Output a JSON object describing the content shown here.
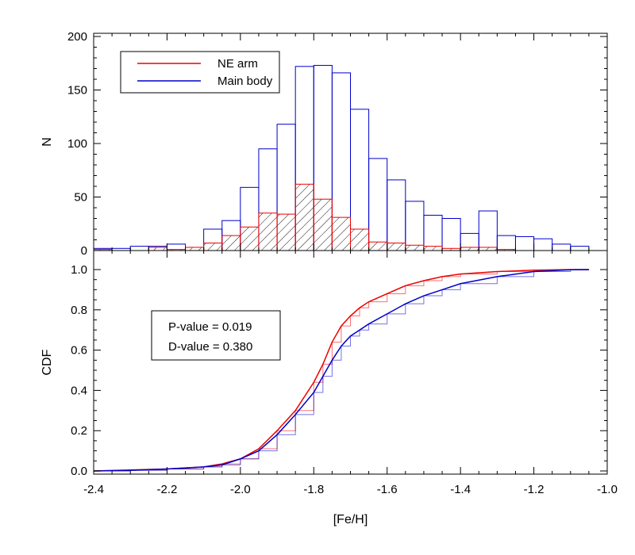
{
  "chart_data": [
    {
      "type": "bar",
      "panel": "histogram",
      "ylabel": "N",
      "xlim": [
        -2.4,
        -1.0
      ],
      "ylim": [
        0,
        200
      ],
      "bin_edges": [
        -2.4,
        -2.35,
        -2.3,
        -2.25,
        -2.2,
        -2.15,
        -2.1,
        -2.05,
        -2.0,
        -1.95,
        -1.9,
        -1.85,
        -1.8,
        -1.75,
        -1.7,
        -1.65,
        -1.6,
        -1.55,
        -1.5,
        -1.45,
        -1.4,
        -1.35,
        -1.3,
        -1.25,
        -1.2,
        -1.15,
        -1.1,
        -1.05
      ],
      "yticks": [
        0,
        50,
        100,
        150,
        200
      ],
      "series": [
        {
          "name": "Main body",
          "color": "#0000cc",
          "values": [
            2,
            2,
            4,
            4,
            6,
            0,
            20,
            28,
            59,
            95,
            118,
            172,
            173,
            166,
            132,
            86,
            66,
            46,
            33,
            30,
            16,
            37,
            14,
            13,
            11,
            6,
            4
          ]
        },
        {
          "name": "NE arm",
          "color": "#ee0000",
          "hatched": true,
          "values": [
            1,
            0,
            0,
            3,
            1,
            3,
            7,
            14,
            22,
            35,
            34,
            62,
            48,
            31,
            20,
            8,
            7,
            5,
            4,
            2,
            3,
            3,
            1,
            0,
            0,
            0,
            0
          ]
        }
      ],
      "legend": {
        "placement": "top-left",
        "entries": [
          "NE arm",
          "Main body"
        ]
      }
    },
    {
      "type": "line",
      "panel": "cdf",
      "xlabel": "[Fe/H]",
      "ylabel": "CDF",
      "xlim": [
        -2.4,
        -1.0
      ],
      "ylim": [
        0,
        1.05
      ],
      "xticks": [
        "-2.4",
        "-2.2",
        "-2.0",
        "-1.8",
        "-1.6",
        "-1.4",
        "-1.2",
        "-1.0"
      ],
      "yticks": [
        "0.0",
        "0.2",
        "0.4",
        "0.6",
        "0.8",
        "1.0"
      ],
      "series": [
        {
          "name": "NE arm",
          "color": "#ee0000",
          "x": [
            -2.4,
            -2.3,
            -2.2,
            -2.1,
            -2.05,
            -2.0,
            -1.95,
            -1.9,
            -1.85,
            -1.8,
            -1.775,
            -1.75,
            -1.725,
            -1.7,
            -1.675,
            -1.65,
            -1.6,
            -1.55,
            -1.5,
            -1.45,
            -1.4,
            -1.3,
            -1.2,
            -1.1,
            -1.05
          ],
          "y": [
            0.0,
            0.005,
            0.01,
            0.02,
            0.035,
            0.06,
            0.11,
            0.2,
            0.3,
            0.44,
            0.53,
            0.64,
            0.72,
            0.77,
            0.81,
            0.84,
            0.88,
            0.92,
            0.945,
            0.965,
            0.978,
            0.99,
            0.997,
            1.0,
            1.0
          ]
        },
        {
          "name": "Main body",
          "color": "#0000cc",
          "x": [
            -2.4,
            -2.3,
            -2.2,
            -2.1,
            -2.05,
            -2.0,
            -1.95,
            -1.9,
            -1.85,
            -1.8,
            -1.775,
            -1.75,
            -1.725,
            -1.7,
            -1.675,
            -1.65,
            -1.6,
            -1.55,
            -1.5,
            -1.45,
            -1.4,
            -1.3,
            -1.2,
            -1.1,
            -1.05
          ],
          "y": [
            0.0,
            0.003,
            0.01,
            0.02,
            0.03,
            0.06,
            0.1,
            0.18,
            0.28,
            0.39,
            0.47,
            0.55,
            0.62,
            0.67,
            0.7,
            0.73,
            0.78,
            0.83,
            0.87,
            0.9,
            0.93,
            0.965,
            0.99,
            0.999,
            1.0
          ]
        }
      ],
      "annotation": [
        "P-value = 0.019",
        "D-value = 0.380"
      ]
    }
  ]
}
